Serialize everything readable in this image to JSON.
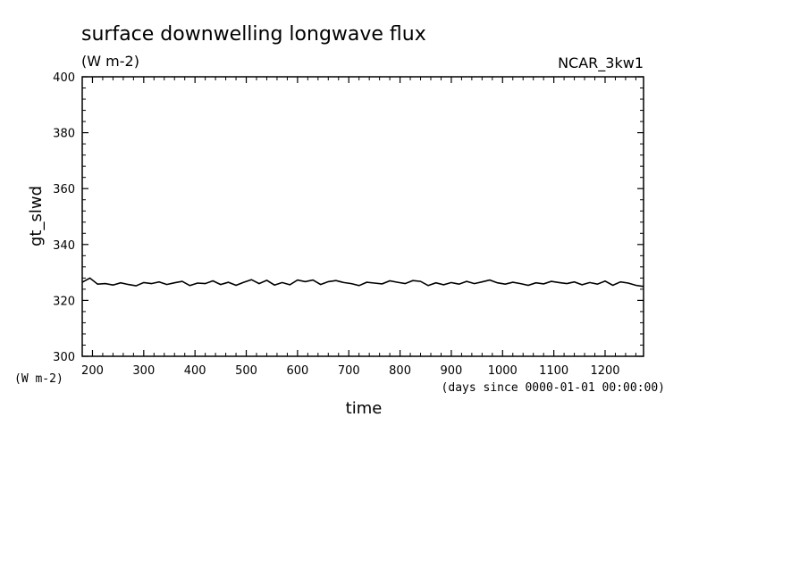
{
  "chart_data": {
    "type": "line",
    "title": "surface downwelling longwave flux",
    "units": "(W m-2)",
    "run_label": "NCAR_3kw1",
    "xlabel": "time",
    "x_units": "(days since 0000-01-01 00:00:00)",
    "ylabel": "gt_slwd",
    "y_units": "(W m-2)",
    "xlim": [
      180,
      1275
    ],
    "ylim": [
      300,
      400
    ],
    "x_ticks": [
      "200",
      "300",
      "400",
      "500",
      "600",
      "700",
      "800",
      "900",
      "1000",
      "1100",
      "1200"
    ],
    "y_ticks": [
      "300",
      "320",
      "340",
      "360",
      "380",
      "400"
    ],
    "grid": false,
    "line_color": "#000000",
    "series": [
      {
        "x": [
          180,
          195,
          210,
          225,
          240,
          255,
          270,
          285,
          300,
          315,
          330,
          345,
          360,
          375,
          390,
          405,
          420,
          435,
          450,
          465,
          480,
          495,
          510,
          525,
          540,
          555,
          570,
          585,
          600,
          615,
          630,
          645,
          660,
          675,
          690,
          705,
          720,
          735,
          750,
          765,
          780,
          795,
          810,
          825,
          840,
          855,
          870,
          885,
          900,
          915,
          930,
          945,
          960,
          975,
          990,
          1005,
          1020,
          1035,
          1050,
          1065,
          1080,
          1095,
          1110,
          1125,
          1140,
          1155,
          1170,
          1185,
          1200,
          1215,
          1230,
          1245,
          1260,
          1275
        ],
        "y": [
          326.5,
          328.0,
          325.8,
          326.0,
          325.5,
          326.3,
          325.7,
          325.2,
          326.4,
          326.0,
          326.6,
          325.7,
          326.3,
          326.8,
          325.3,
          326.2,
          326.0,
          327.0,
          325.7,
          326.5,
          325.4,
          326.5,
          327.4,
          326.0,
          327.2,
          325.5,
          326.4,
          325.6,
          327.3,
          326.7,
          327.3,
          325.7,
          326.7,
          327.1,
          326.4,
          326.0,
          325.3,
          326.5,
          326.2,
          325.9,
          327.0,
          326.5,
          326.0,
          327.1,
          326.8,
          325.3,
          326.3,
          325.6,
          326.4,
          325.8,
          326.8,
          326.0,
          326.6,
          327.3,
          326.3,
          325.8,
          326.5,
          326.0,
          325.4,
          326.3,
          325.9,
          326.8,
          326.4,
          326.0,
          326.6,
          325.6,
          326.4,
          325.8,
          326.9,
          325.4,
          326.6,
          326.2,
          325.4,
          325.0
        ]
      }
    ]
  }
}
